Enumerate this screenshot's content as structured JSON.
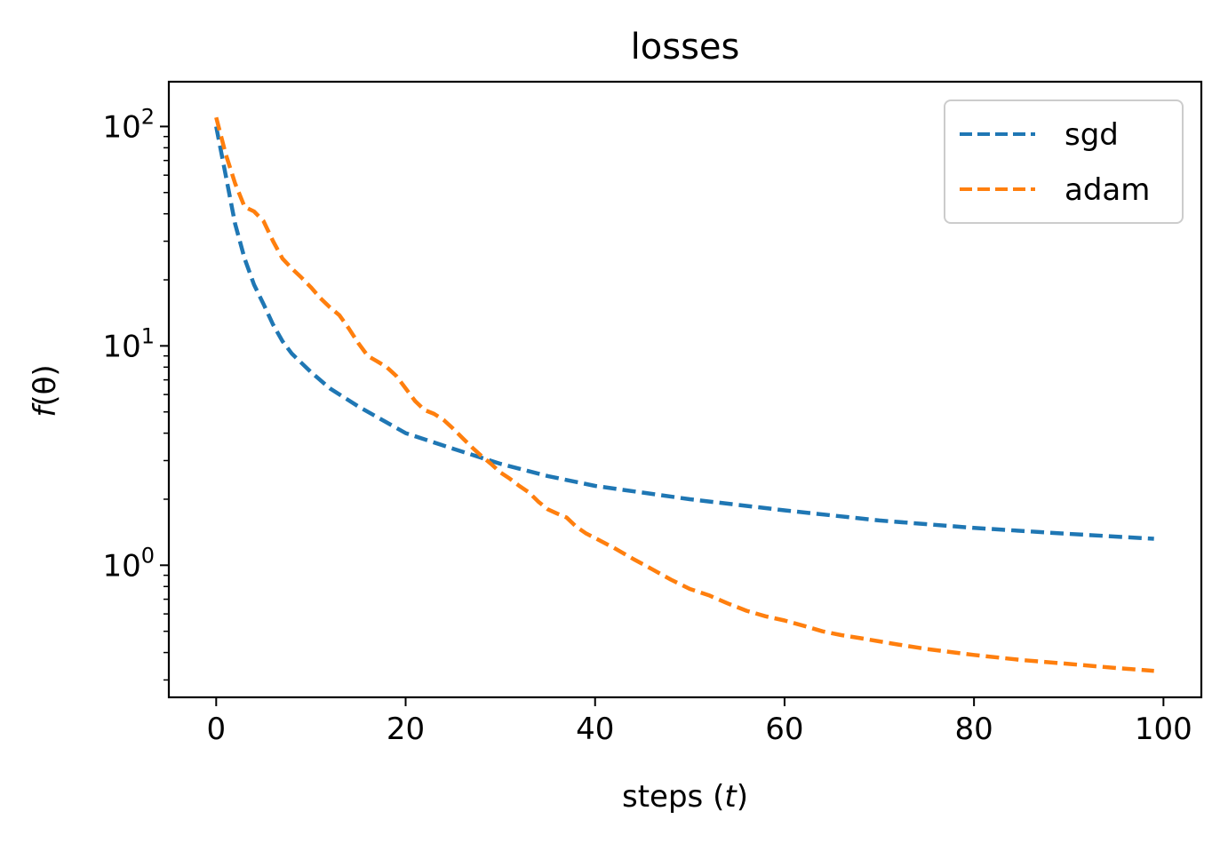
{
  "chart_data": {
    "type": "line",
    "title": "losses",
    "xlabel_main": "steps (",
    "xlabel_var": "t",
    "xlabel_close": ")",
    "ylabel_f": "f",
    "ylabel_rest": "(θ)",
    "xlim": [
      -5,
      104
    ],
    "ylim": [
      0.25,
      160
    ],
    "yscale": "log",
    "grid": false,
    "legend_position": "top-right",
    "x_ticks": [
      0,
      20,
      40,
      60,
      80,
      100
    ],
    "x_tick_labels": [
      "0",
      "20",
      "40",
      "60",
      "80",
      "100"
    ],
    "y_ticks": [
      {
        "value": 1,
        "base": "10",
        "exp": "0"
      },
      {
        "value": 10,
        "base": "10",
        "exp": "1"
      },
      {
        "value": 100,
        "base": "10",
        "exp": "2"
      }
    ],
    "series": [
      {
        "name": "sgd",
        "color": "#1f77b4",
        "x": [
          0,
          1,
          2,
          3,
          4,
          5,
          6,
          7,
          8,
          10,
          12,
          15,
          20,
          25,
          30,
          35,
          40,
          50,
          60,
          70,
          80,
          90,
          99
        ],
        "y": [
          100,
          60,
          36,
          25,
          19,
          15.5,
          12.5,
          10.5,
          9.2,
          7.6,
          6.4,
          5.3,
          4.0,
          3.4,
          2.9,
          2.55,
          2.3,
          2.0,
          1.78,
          1.6,
          1.48,
          1.39,
          1.32
        ]
      },
      {
        "name": "adam",
        "color": "#ff7f0e",
        "x": [
          0,
          1,
          2,
          3,
          4,
          5,
          6,
          7,
          8,
          9,
          10,
          11,
          12,
          13,
          14,
          15,
          16,
          17,
          18,
          19,
          20,
          21,
          22,
          23,
          24,
          25,
          26,
          27,
          28,
          29,
          30,
          31,
          32,
          33,
          34,
          35,
          36,
          37,
          38,
          39,
          40,
          42,
          44,
          46,
          48,
          50,
          52,
          54,
          56,
          58,
          60,
          62,
          64,
          66,
          68,
          70,
          72,
          75,
          80,
          85,
          90,
          95,
          99
        ],
        "y": [
          110,
          75,
          55,
          43,
          41,
          37,
          30,
          25,
          22.5,
          20.5,
          18.5,
          16.5,
          15.0,
          13.8,
          12.0,
          10.3,
          9.0,
          8.5,
          8.0,
          7.3,
          6.4,
          5.6,
          5.1,
          4.9,
          4.6,
          4.2,
          3.8,
          3.45,
          3.15,
          2.9,
          2.65,
          2.48,
          2.3,
          2.15,
          1.95,
          1.8,
          1.72,
          1.65,
          1.5,
          1.4,
          1.33,
          1.2,
          1.07,
          0.96,
          0.86,
          0.78,
          0.73,
          0.67,
          0.62,
          0.585,
          0.56,
          0.53,
          0.5,
          0.48,
          0.465,
          0.45,
          0.435,
          0.415,
          0.39,
          0.37,
          0.355,
          0.34,
          0.33
        ]
      }
    ]
  }
}
